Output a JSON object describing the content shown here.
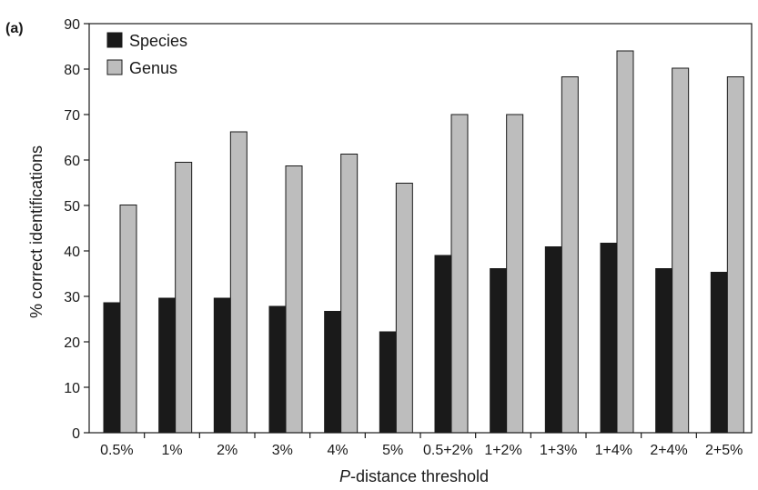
{
  "panel_label": "(a)",
  "chart_data": {
    "type": "bar",
    "title": "",
    "xlabel_italic": "P",
    "xlabel_rest": "-distance threshold",
    "ylabel": "% correct identifications",
    "ylim": [
      0,
      90
    ],
    "yticks": [
      0,
      10,
      20,
      30,
      40,
      50,
      60,
      70,
      80,
      90
    ],
    "grid": false,
    "legend_position": "top-left",
    "categories": [
      "0.5%",
      "1%",
      "2%",
      "3%",
      "4%",
      "5%",
      "0.5+2%",
      "1+2%",
      "1+3%",
      "1+4%",
      "2+4%",
      "2+5%"
    ],
    "series": [
      {
        "name": "Species",
        "color": "#1a1a1a",
        "values": [
          28.6,
          29.6,
          29.6,
          27.8,
          26.7,
          22.2,
          39.0,
          36.1,
          40.9,
          41.7,
          36.1,
          35.3
        ]
      },
      {
        "name": "Genus",
        "color": "#bdbdbd",
        "values": [
          50.1,
          59.5,
          66.2,
          58.7,
          61.3,
          54.9,
          70.0,
          70.0,
          78.3,
          84.0,
          80.2,
          78.3
        ]
      }
    ]
  }
}
